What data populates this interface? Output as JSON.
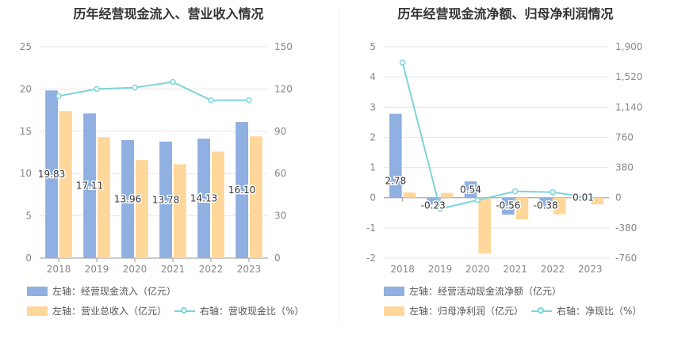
{
  "titles": {
    "left": "历年经营现金流入、营业收入情况",
    "right": "历年经营现金流净额、归母净利润情况"
  },
  "colors": {
    "blue": "#8fb0e0",
    "orange": "#ffd79b",
    "line": "#7ed3dc",
    "axis_text": "#888888",
    "grid": "#e6e6e6"
  },
  "legend": {
    "left": [
      {
        "label": "左轴：经营现金流入（亿元）",
        "kind": "bar",
        "color": "#8fb0e0"
      },
      {
        "label": "左轴：营业总收入（亿元）",
        "kind": "bar",
        "color": "#ffd79b"
      },
      {
        "label": "右轴：营收现金比（%）",
        "kind": "line",
        "color": "#7ed3dc"
      }
    ],
    "right": [
      {
        "label": "左轴：经营活动现金流净额（亿元）",
        "kind": "bar",
        "color": "#8fb0e0"
      },
      {
        "label": "左轴：归母净利润（亿元）",
        "kind": "bar",
        "color": "#ffd79b"
      },
      {
        "label": "右轴：净现比（%）",
        "kind": "line",
        "color": "#7ed3dc"
      }
    ]
  },
  "chart_data": [
    {
      "type": "bar",
      "title": "历年经营现金流入、营业收入情况",
      "categories": [
        "2018",
        "2019",
        "2020",
        "2021",
        "2022",
        "2023"
      ],
      "ylim_left": [
        0,
        25
      ],
      "yticks_left": [
        0,
        5,
        10,
        15,
        20,
        25
      ],
      "ylim_right": [
        0,
        150
      ],
      "yticks_right": [
        "0",
        "30",
        "60",
        "90",
        "120",
        "150"
      ],
      "series": [
        {
          "name": "左轴：经营现金流入（亿元）",
          "axis": "left",
          "type": "bar",
          "values": [
            19.83,
            17.11,
            13.96,
            13.78,
            14.13,
            16.1
          ],
          "labels": [
            "19.83",
            "17.11",
            "13.96",
            "13.78",
            "14.13",
            "16.10"
          ]
        },
        {
          "name": "左轴：营业总收入（亿元）",
          "axis": "left",
          "type": "bar",
          "values": [
            17.4,
            14.3,
            11.6,
            11.1,
            12.6,
            14.4
          ]
        },
        {
          "name": "右轴：营收现金比（%）",
          "axis": "right",
          "type": "line",
          "values": [
            115,
            120,
            121,
            125,
            112,
            112
          ]
        }
      ],
      "grid": true
    },
    {
      "type": "bar",
      "title": "历年经营现金流净额、归母净利润情况",
      "categories": [
        "2018",
        "2019",
        "2020",
        "2021",
        "2022",
        "2023"
      ],
      "ylim_left": [
        -2,
        5
      ],
      "yticks_left": [
        -2,
        -1,
        0,
        1,
        2,
        3,
        4,
        5
      ],
      "ylim_right": [
        -760,
        1900
      ],
      "yticks_right": [
        "-760",
        "-380",
        "0",
        "380",
        "760",
        "1,140",
        "1,520",
        "1,900"
      ],
      "series": [
        {
          "name": "左轴：经营活动现金流净额（亿元）",
          "axis": "left",
          "type": "bar",
          "values": [
            2.78,
            -0.23,
            0.54,
            -0.56,
            -0.38,
            0.01
          ],
          "labels": [
            "2.78",
            "-0.23",
            "0.54",
            "-0.56",
            "-0.38",
            "0.01"
          ]
        },
        {
          "name": "左轴：归母净利润（亿元）",
          "axis": "left",
          "type": "bar",
          "values": [
            0.17,
            0.16,
            -1.85,
            -0.72,
            -0.55,
            -0.22
          ]
        },
        {
          "name": "右轴：净现比（%）",
          "axis": "right",
          "type": "line",
          "values": [
            1700,
            -140,
            -30,
            80,
            70,
            0
          ]
        }
      ],
      "grid": true
    }
  ]
}
